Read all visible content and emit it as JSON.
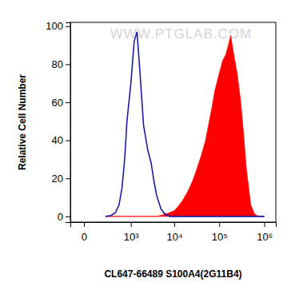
{
  "chart_data": {
    "type": "area",
    "x_label": "CL647-66489 S100A4(2G11B4)",
    "y_label": "Relative Cell Number",
    "annotations": [
      "WWW.PTGLAB.COM"
    ],
    "log": "x",
    "x": [
      200,
      300,
      400,
      500,
      600,
      700,
      800,
      1000,
      1200,
      1400,
      1600,
      2000,
      2500,
      3000,
      3500,
      4000,
      5000,
      6000,
      7000,
      8000,
      10000,
      12000,
      15000,
      20000,
      25000,
      30000,
      40000,
      50000,
      60000,
      70000,
      80000,
      100000,
      120000,
      140000,
      160000,
      180000,
      200000,
      250000,
      300000,
      350000,
      400000,
      500000,
      600000,
      700000,
      1000000
    ],
    "series": [
      {
        "type": "line",
        "color": "#1c1ca8",
        "values": [
          0,
          0.5,
          2,
          6,
          15,
          30,
          50,
          70,
          92,
          97,
          80,
          48,
          35,
          28,
          18,
          11,
          4,
          1.5,
          0.5,
          0,
          0,
          0,
          0,
          0,
          0,
          0,
          0,
          0,
          0,
          0,
          0,
          0,
          0,
          0,
          0,
          0,
          0,
          0,
          0,
          0,
          0,
          0,
          0,
          0,
          0
        ]
      },
      {
        "type": "area",
        "color": "#ff0000",
        "values": [
          0,
          0,
          0,
          0,
          0,
          0,
          0,
          0,
          0,
          0,
          0,
          0,
          0,
          0,
          0,
          0,
          0.5,
          1,
          1.5,
          2,
          3,
          5,
          8,
          13,
          18,
          23,
          32,
          40,
          50,
          58,
          66,
          75,
          82,
          85,
          90,
          95,
          88,
          75,
          60,
          42,
          25,
          6,
          1.5,
          0.3,
          0
        ]
      }
    ],
    "xlim": [
      -100,
      1800000
    ],
    "xticks": [
      0,
      {
        "value": 1000,
        "label": "10³"
      },
      {
        "value": 10000,
        "label": "10⁴"
      },
      {
        "value": 100000,
        "label": "10⁵"
      },
      {
        "value": 1000000,
        "label": "10⁶"
      }
    ],
    "ylim": [
      -3,
      102
    ],
    "yticks": [
      0,
      20,
      40,
      60,
      80,
      100
    ]
  }
}
